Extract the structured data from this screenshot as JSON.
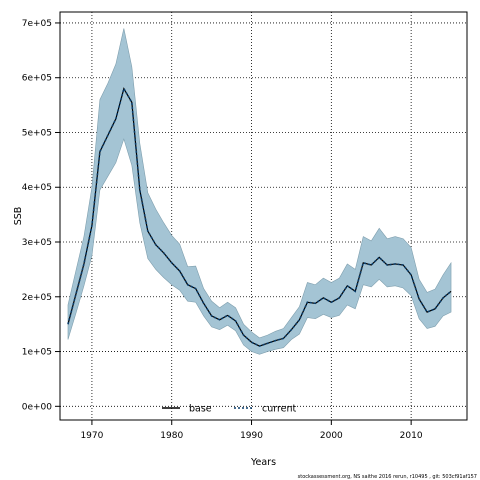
{
  "chart_data": {
    "type": "area",
    "xlabel": "Years",
    "ylabel": "SSB",
    "xlim": [
      1966,
      2017
    ],
    "ylim": [
      -25000,
      720000
    ],
    "x_ticks": [
      1970,
      1980,
      1990,
      2000,
      2010
    ],
    "y_ticks": [
      0,
      100000,
      200000,
      300000,
      400000,
      500000,
      600000,
      700000
    ],
    "x_tick_labels": [
      "1970",
      "1980",
      "1990",
      "2000",
      "2010"
    ],
    "y_tick_labels": [
      "0e+00",
      "1e+05",
      "2e+05",
      "3e+05",
      "4e+05",
      "5e+05",
      "6e+05",
      "7e+05"
    ],
    "grid": true,
    "grid_style": "dotted",
    "legend_position": "bottom-center",
    "footnote": "stockassessment.org, NS saithe 2016 rerun, r10495 , git: 503cf91af157",
    "colors": {
      "band_fill": "#a4c4d4",
      "band_edge": "#7f9fae",
      "base_line": "#000000",
      "current_line": "#0a3d6b",
      "grid": "#000000"
    },
    "x": [
      1967,
      1968,
      1969,
      1970,
      1971,
      1972,
      1973,
      1974,
      1975,
      1976,
      1977,
      1978,
      1979,
      1980,
      1981,
      1982,
      1983,
      1984,
      1985,
      1986,
      1987,
      1988,
      1989,
      1990,
      1991,
      1992,
      1993,
      1994,
      1995,
      1996,
      1997,
      1998,
      1999,
      2000,
      2001,
      2002,
      2003,
      2004,
      2005,
      2006,
      2007,
      2008,
      2009,
      2010,
      2011,
      2012,
      2013,
      2014,
      2015
    ],
    "series": [
      {
        "name": "base",
        "style": "solid",
        "values": [
          150000,
          205000,
          260000,
          330000,
          465000,
          495000,
          525000,
          580000,
          555000,
          395000,
          320000,
          295000,
          280000,
          262000,
          247000,
          222000,
          215000,
          188000,
          165000,
          158000,
          166000,
          156000,
          130000,
          117000,
          110000,
          115000,
          120000,
          124000,
          140000,
          158000,
          190000,
          188000,
          198000,
          190000,
          198000,
          220000,
          210000,
          262000,
          258000,
          272000,
          258000,
          260000,
          258000,
          240000,
          196000,
          172000,
          178000,
          198000,
          210000
        ]
      },
      {
        "name": "current",
        "style": "dotted",
        "values": [
          150000,
          205000,
          260000,
          330000,
          465000,
          495000,
          525000,
          580000,
          555000,
          395000,
          320000,
          295000,
          280000,
          262000,
          247000,
          222000,
          215000,
          188000,
          165000,
          158000,
          166000,
          156000,
          130000,
          117000,
          110000,
          115000,
          120000,
          124000,
          140000,
          158000,
          190000,
          188000,
          198000,
          190000,
          198000,
          220000,
          210000,
          262000,
          258000,
          272000,
          258000,
          260000,
          258000,
          240000,
          196000,
          172000,
          178000,
          198000,
          210000
        ]
      }
    ],
    "band": {
      "lower": [
        122000,
        170000,
        220000,
        275000,
        395000,
        420000,
        445000,
        488000,
        440000,
        335000,
        270000,
        250000,
        235000,
        222000,
        212000,
        192000,
        190000,
        165000,
        145000,
        140000,
        148000,
        138000,
        112000,
        100000,
        95000,
        100000,
        104000,
        107000,
        122000,
        132000,
        162000,
        160000,
        168000,
        162000,
        166000,
        185000,
        178000,
        222000,
        218000,
        232000,
        218000,
        220000,
        216000,
        202000,
        160000,
        142000,
        146000,
        165000,
        172000
      ],
      "upper": [
        185000,
        248000,
        310000,
        400000,
        560000,
        590000,
        625000,
        690000,
        620000,
        480000,
        390000,
        360000,
        335000,
        312000,
        296000,
        255000,
        256000,
        215000,
        192000,
        180000,
        190000,
        180000,
        150000,
        136000,
        125000,
        130000,
        137000,
        142000,
        162000,
        182000,
        226000,
        222000,
        234000,
        226000,
        234000,
        260000,
        250000,
        310000,
        302000,
        325000,
        306000,
        310000,
        306000,
        290000,
        232000,
        208000,
        214000,
        240000,
        262000
      ]
    }
  }
}
